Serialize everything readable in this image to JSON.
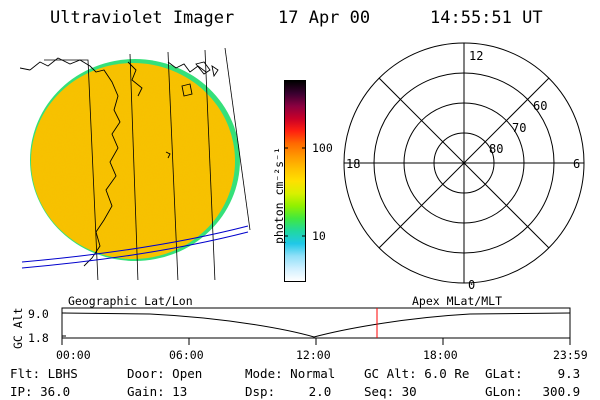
{
  "header": {
    "title": "Ultraviolet Imager",
    "date": "17 Apr 00",
    "time": "14:55:51 UT"
  },
  "colorbar": {
    "unit_label": "photon cm⁻²s⁻¹",
    "tick_100": "100",
    "tick_10": "10",
    "colors_top_to_bottom": [
      "#000000",
      "#3a0030",
      "#8a0040",
      "#c80028",
      "#ff2010",
      "#ff6a00",
      "#ff9800",
      "#ffc000",
      "#ffe000",
      "#d8f000",
      "#90f000",
      "#40e840",
      "#20d8a0",
      "#20c8e8",
      "#90e0f8",
      "#d0f0ff",
      "#ffffff"
    ]
  },
  "image_panel": {
    "fill_color": "#f5c400",
    "rim_color": "#35e07a"
  },
  "polar_plot": {
    "label_top": "12",
    "label_bottom": "0",
    "label_left": "18",
    "label_right": "6",
    "ring_labels": [
      "80",
      "70",
      "60"
    ]
  },
  "timeline": {
    "left_label": "Geographic Lat/Lon",
    "right_label": "Apex MLat/MLT",
    "y_axis_label": "GC Alt",
    "y_ticks": [
      "9.0",
      "1.8"
    ],
    "x_ticks": [
      "00:00",
      "06:00",
      "12:00",
      "18:00",
      "23:59"
    ],
    "marker_color": "#ff0000"
  },
  "info": {
    "row1": [
      {
        "label": "Flt:",
        "value": "LBHS"
      },
      {
        "label": "Door:",
        "value": "Open"
      },
      {
        "label": "Mode:",
        "value": "Normal"
      },
      {
        "label": "GC Alt:",
        "value": "6.0 Re"
      },
      {
        "label": "GLat:",
        "value": "9.3"
      }
    ],
    "row2": [
      {
        "label": "IP:",
        "value": "36.0"
      },
      {
        "label": "Gain:",
        "value": "13"
      },
      {
        "label": "Dsp:",
        "value": "2.0"
      },
      {
        "label": "Seq:",
        "value": "30"
      },
      {
        "label": "GLon:",
        "value": "300.9"
      }
    ]
  }
}
